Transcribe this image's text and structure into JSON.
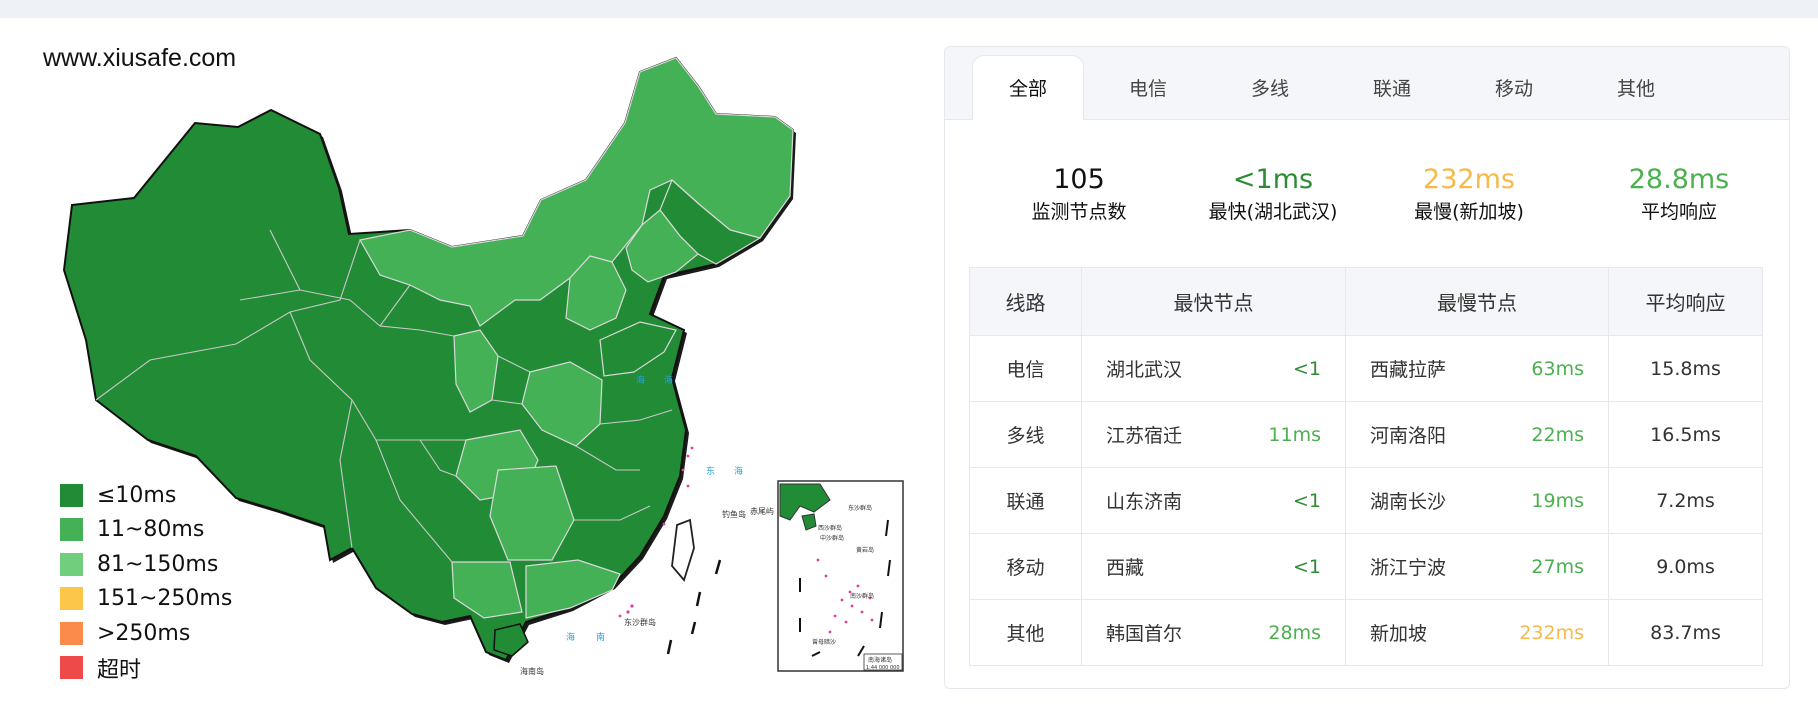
{
  "watermark": "www.xiusafe.com",
  "legend": [
    {
      "label": "≤10ms",
      "color": "#228b35"
    },
    {
      "label": "11~80ms",
      "color": "#45b156"
    },
    {
      "label": "81~150ms",
      "color": "#6fcf7c"
    },
    {
      "label": "151~250ms",
      "color": "#fcc64a"
    },
    {
      "label": ">250ms",
      "color": "#fb8b4a"
    },
    {
      "label": "超时",
      "color": "#ef4a4a"
    }
  ],
  "map": {
    "inset_title": "南海诸岛",
    "inset_scale": "1:44 000 000",
    "labels": [
      "海",
      "海",
      "东",
      "海",
      "钓鱼岛",
      "赤尾屿",
      "东沙群岛",
      "海",
      "南",
      "海南岛",
      "东沙群岛",
      "西沙群岛",
      "中沙群岛",
      "黄岩岛",
      "南沙群岛",
      "曾母暗沙"
    ]
  },
  "tabs": [
    "全部",
    "电信",
    "多线",
    "联通",
    "移动",
    "其他"
  ],
  "active_tab": "全部",
  "summary": [
    {
      "value": "105",
      "label": "监测节点数"
    },
    {
      "value": "<1ms",
      "label": "最快(湖北武汉)"
    },
    {
      "value": "232ms",
      "label": "最慢(新加坡)"
    },
    {
      "value": "28.8ms",
      "label": "平均响应"
    }
  ],
  "table": {
    "headers": [
      "线路",
      "最快节点",
      "最慢节点",
      "平均响应"
    ],
    "rows": [
      {
        "line": "电信",
        "fast_node": "湖北武汉",
        "fast_ms": "<1",
        "slow_node": "西藏拉萨",
        "slow_ms": "63ms",
        "avg": "15.8ms"
      },
      {
        "line": "多线",
        "fast_node": "江苏宿迁",
        "fast_ms": "11ms",
        "slow_node": "河南洛阳",
        "slow_ms": "22ms",
        "avg": "16.5ms"
      },
      {
        "line": "联通",
        "fast_node": "山东济南",
        "fast_ms": "<1",
        "slow_node": "湖南长沙",
        "slow_ms": "19ms",
        "avg": "7.2ms"
      },
      {
        "line": "移动",
        "fast_node": "西藏",
        "fast_ms": "<1",
        "slow_node": "浙江宁波",
        "slow_ms": "27ms",
        "avg": "9.0ms"
      },
      {
        "line": "其他",
        "fast_node": "韩国首尔",
        "fast_ms": "28ms",
        "slow_node": "新加坡",
        "slow_ms": "232ms",
        "avg": "83.7ms"
      }
    ]
  },
  "colors": {
    "dark_green": "#228b35",
    "mid_green": "#45b156",
    "light_green": "#6fcf7c",
    "orange": "#f7b94a",
    "border": "#e4e7ec"
  }
}
